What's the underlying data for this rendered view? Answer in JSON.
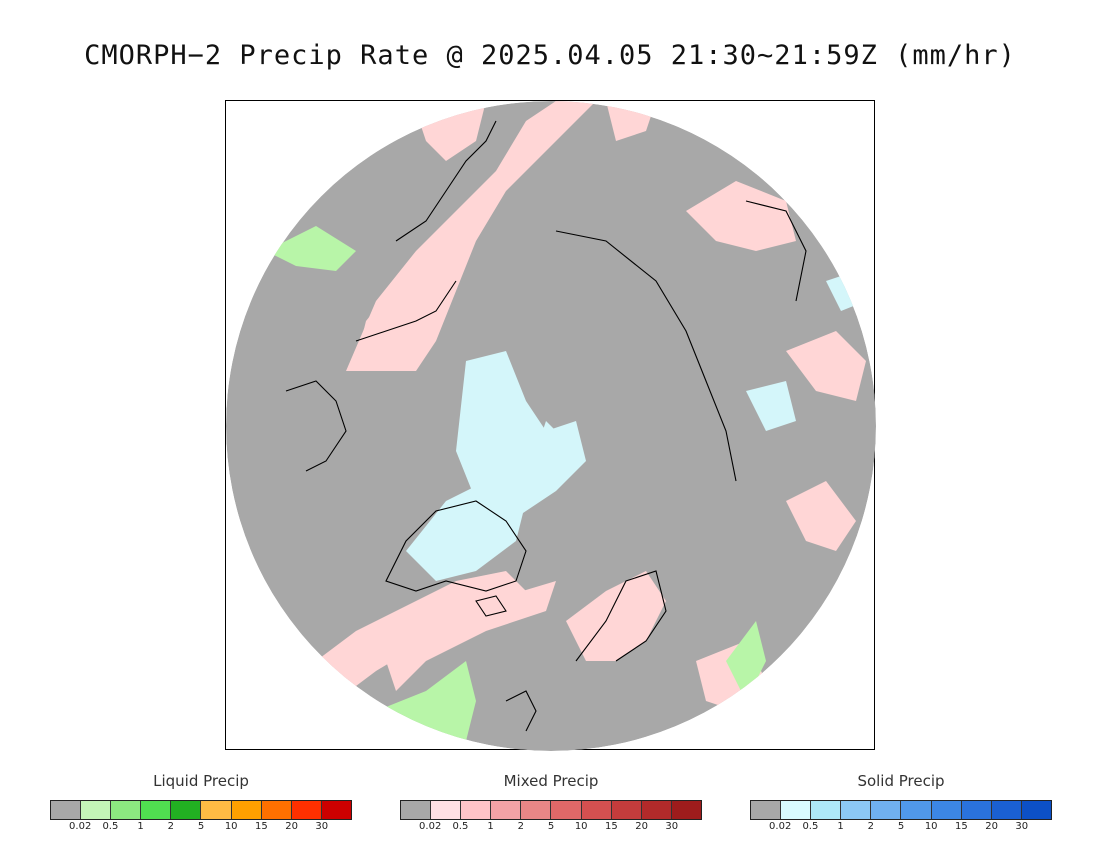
{
  "title": "CMORPH−2 Precip Rate @ 2025.04.05 21:30~21:59Z (mm/hr)",
  "colors": {
    "nodata_gray": "#a8a8a8",
    "mixed_light": "#ffd6d6",
    "solid_light": "#d4f6fa",
    "liquid_light": "#b8f5a8",
    "coast": "#000000"
  },
  "legends": [
    {
      "name": "liquid",
      "title": "Liquid Precip",
      "colors": [
        "#a8a8a8",
        "#c4f5b8",
        "#8ce880",
        "#50de50",
        "#22b022",
        "#ffbb44",
        "#ffa000",
        "#ff7000",
        "#ff3000",
        "#cc0000"
      ],
      "ticks": [
        "0.02",
        "0.5",
        "1",
        "2",
        "5",
        "10",
        "15",
        "20",
        "30"
      ]
    },
    {
      "name": "mixed",
      "title": "Mixed Precip",
      "colors": [
        "#a8a8a8",
        "#ffe0e4",
        "#ffc4c8",
        "#f2a2a6",
        "#e88686",
        "#df6868",
        "#d45050",
        "#c43c3c",
        "#b22a2a",
        "#9e1c1c"
      ],
      "ticks": [
        "0.02",
        "0.5",
        "1",
        "2",
        "5",
        "10",
        "15",
        "20",
        "30"
      ]
    },
    {
      "name": "solid",
      "title": "Solid Precip",
      "colors": [
        "#a8a8a8",
        "#d8fbff",
        "#aee8f8",
        "#8cc8f5",
        "#70b0f0",
        "#5098ea",
        "#3c86e4",
        "#2a72dc",
        "#1a60d2",
        "#0c50c6"
      ],
      "ticks": [
        "0.02",
        "0.5",
        "1",
        "2",
        "5",
        "10",
        "15",
        "20",
        "30"
      ]
    }
  ]
}
